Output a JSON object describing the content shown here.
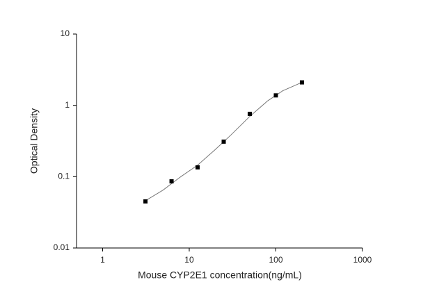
{
  "chart_data": {
    "type": "scatter",
    "xlabel": "Mouse CYP2E1 concentration(ng/mL)",
    "ylabel": "Optical Density",
    "xscale": "log",
    "yscale": "log",
    "xlim": [
      0.5,
      1000
    ],
    "ylim": [
      0.01,
      10
    ],
    "xticks": [
      1,
      10,
      100,
      1000
    ],
    "yticks": [
      0.01,
      0.1,
      1,
      10
    ],
    "series": [
      {
        "type": "scatter",
        "color": "#000000",
        "x": [
          3.125,
          6.25,
          12.5,
          25,
          50,
          100,
          200
        ],
        "values": [
          0.045,
          0.086,
          0.135,
          0.31,
          0.76,
          1.38,
          2.1
        ]
      },
      {
        "type": "line",
        "color": "#777777",
        "x": [
          3.125,
          5,
          8,
          12.5,
          20,
          30,
          50,
          80,
          120,
          200
        ],
        "values": [
          0.046,
          0.065,
          0.1,
          0.145,
          0.24,
          0.38,
          0.7,
          1.15,
          1.6,
          2.1
        ]
      }
    ]
  }
}
